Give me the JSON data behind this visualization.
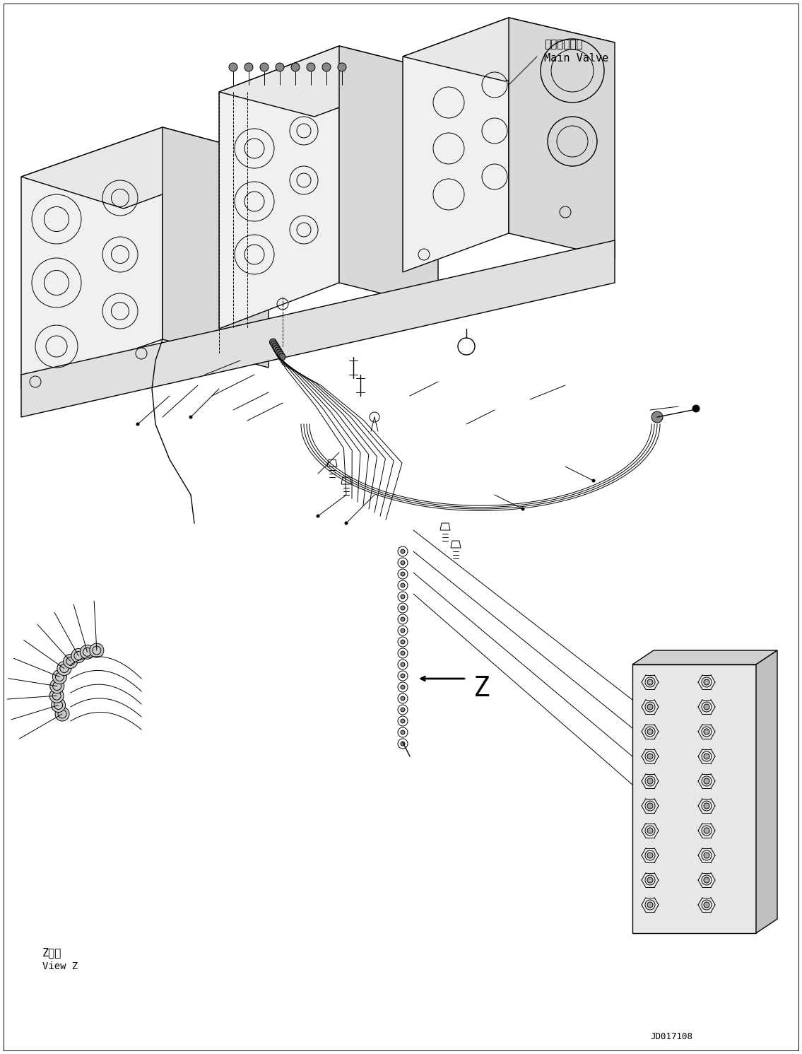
{
  "figure_width": 11.35,
  "figure_height": 14.91,
  "dpi": 100,
  "bg_color": "#ffffff",
  "line_color": "#000000",
  "label_fontsize": 8,
  "mono_font": "monospace",
  "title_jp": "メインバルブ",
  "title_en": "Main Valve",
  "label_z_view_jp": "Z　視",
  "label_z_view_en": "View Z",
  "code": "JD017108",
  "arrow_z_label": "Z"
}
